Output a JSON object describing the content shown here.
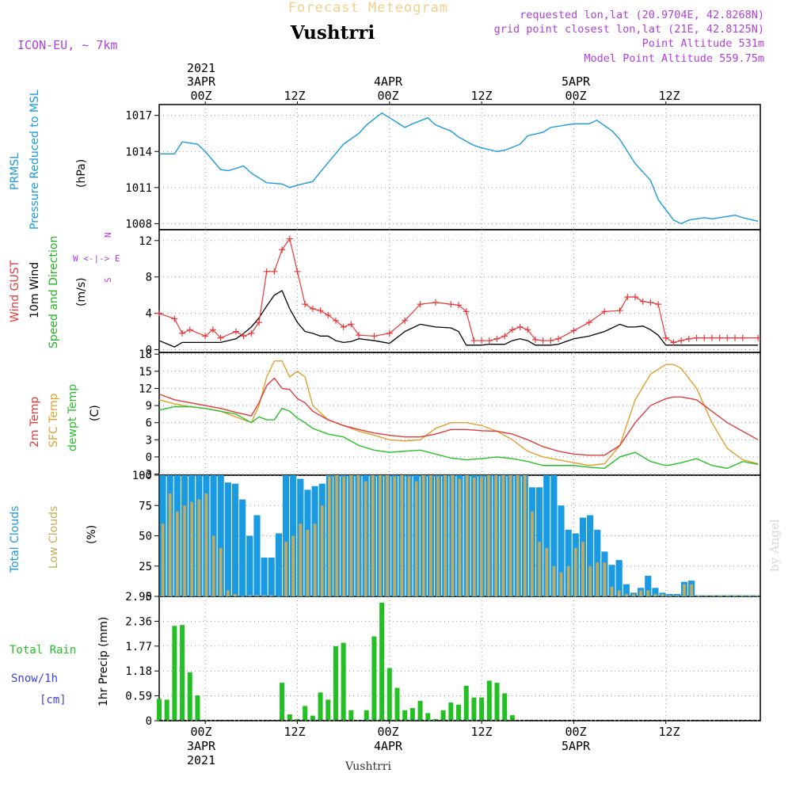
{
  "header": {
    "forecast_title": "Forecast Meteogram",
    "location": "Vushtrri",
    "model": "ICON-EU, ~ 7km",
    "requested": "requested lon,lat (20.9704E, 42.8268N)",
    "gridpoint": "grid point closest lon,lat (21E, 42.8125N)",
    "point_alt": "Point Altitude 531m",
    "model_alt": "Model Point Altitude 559.75m",
    "bottom_label": "Vushtrri",
    "watermark": "by Angel"
  },
  "colors": {
    "pressure": "#1a9ae0",
    "gust": "#e8383a",
    "wind": "#000000",
    "dir": "#22b422",
    "temp": "#e03c3c",
    "sfc": "#e0a030",
    "dewpt": "#28c028",
    "total_clouds": "#1a9ae0",
    "low_clouds": "#c8aa5a",
    "rain": "#22c022",
    "snow": "#4040e0",
    "purple": "#b040d8",
    "forecast_title": "#f0d08a"
  },
  "top_axis": {
    "ticks": [
      {
        "label": "00Z",
        "date": "3APR",
        "year": "2021"
      },
      {
        "label": "12Z",
        "date": "",
        "year": ""
      },
      {
        "label": "00Z",
        "date": "4APR",
        "year": ""
      },
      {
        "label": "12Z",
        "date": "",
        "year": ""
      },
      {
        "label": "00Z",
        "date": "5APR",
        "year": ""
      },
      {
        "label": "12Z",
        "date": "",
        "year": ""
      }
    ]
  },
  "bottom_axis": {
    "ticks": [
      {
        "label": "00Z",
        "date": "3APR",
        "year": "2021"
      },
      {
        "label": "12Z",
        "date": "",
        "year": ""
      },
      {
        "label": "00Z",
        "date": "4APR",
        "year": ""
      },
      {
        "label": "12Z",
        "date": "",
        "year": ""
      },
      {
        "label": "00Z",
        "date": "5APR",
        "year": ""
      },
      {
        "label": "12Z",
        "date": "",
        "year": ""
      }
    ]
  },
  "panel_labels": {
    "pressure": {
      "l1": "PRMSL",
      "l2": "Pressure Reduced to MSL",
      "unit": "(hPa)"
    },
    "wind": {
      "l1": "Wind GUST",
      "l2": "10m Wind",
      "l3": "Speed and Direction",
      "unit": "(m/s)",
      "compass_ns": "N",
      "compass_s": "S",
      "compass_we": "W <-|-> E"
    },
    "temp": {
      "l1": "2m Temp",
      "l2": "SFC Temp",
      "l3": "dewpt Temp",
      "unit": "(C)"
    },
    "clouds": {
      "l1": "Total Clouds",
      "l2": "Low Clouds",
      "unit": "(%)"
    },
    "precip": {
      "l1": "Total  Rain",
      "l2": "Snow/1h",
      "l3": "[cm]",
      "unit": "1hr Precip (mm)"
    }
  },
  "chart_data": [
    {
      "type": "line",
      "panel": "pressure",
      "x_hours": [
        -6,
        -4,
        -3,
        -1,
        0,
        2,
        3,
        5,
        6,
        8,
        10,
        11,
        12,
        14,
        15,
        18,
        20,
        21,
        23,
        24,
        26,
        27,
        29,
        30,
        32,
        33,
        35,
        36,
        38,
        39,
        41,
        42,
        44,
        45,
        47,
        48,
        50,
        51,
        53,
        54,
        56,
        58,
        59,
        61,
        62,
        63,
        65,
        66,
        67,
        69,
        70,
        72
      ],
      "values": [
        1013.8,
        1013.8,
        1014.8,
        1014.6,
        1014.0,
        1012.5,
        1012.4,
        1012.8,
        1012.2,
        1011.4,
        1011.3,
        1011.0,
        1011.2,
        1011.5,
        1012.3,
        1014.6,
        1015.5,
        1016.2,
        1017.2,
        1016.8,
        1016.0,
        1016.3,
        1016.8,
        1016.2,
        1015.7,
        1015.2,
        1014.5,
        1014.3,
        1014.0,
        1014.1,
        1014.6,
        1015.3,
        1015.6,
        1016.0,
        1016.2,
        1016.3,
        1016.3,
        1016.6,
        1015.7,
        1015.0,
        1013.0,
        1011.6,
        1010.0,
        1008.3,
        1008.0,
        1008.3,
        1008.5,
        1008.4,
        1008.5,
        1008.7,
        1008.5,
        1008.2
      ],
      "ylim": [
        1007.5,
        1017.9
      ],
      "yticks": [
        1008,
        1011,
        1014,
        1017
      ]
    },
    {
      "type": "line",
      "panel": "wind",
      "x_hours": [
        -6,
        -4,
        -3,
        -2,
        0,
        1,
        2,
        4,
        5,
        6,
        7,
        8,
        9,
        10,
        11,
        12,
        13,
        14,
        15,
        16,
        17,
        18,
        19,
        20,
        22,
        24,
        26,
        28,
        30,
        32,
        33,
        34,
        35,
        36,
        37,
        38,
        39,
        40,
        41,
        42,
        43,
        44,
        45,
        46,
        48,
        50,
        52,
        54,
        55,
        56,
        57,
        58,
        59,
        60,
        61,
        62,
        63,
        64,
        65,
        66,
        67,
        68,
        69,
        70,
        72
      ],
      "gust": [
        4.0,
        3.4,
        1.8,
        2.2,
        1.5,
        2.2,
        1.3,
        2.0,
        1.5,
        1.8,
        3.0,
        8.6,
        8.6,
        11.0,
        12.2,
        8.6,
        5.0,
        4.5,
        4.3,
        3.8,
        3.2,
        2.5,
        2.8,
        1.6,
        1.5,
        1.8,
        3.2,
        5.0,
        5.2,
        5.0,
        4.9,
        4.2,
        1.0,
        1.0,
        1.0,
        1.2,
        1.5,
        2.2,
        2.5,
        2.2,
        1.1,
        1.0,
        1.0,
        1.2,
        2.1,
        3.0,
        4.2,
        4.3,
        5.8,
        5.8,
        5.3,
        5.2,
        5.0,
        1.3,
        0.8,
        1.0,
        1.2,
        1.3,
        1.3,
        1.3,
        1.3,
        1.3,
        1.3,
        1.3,
        1.3
      ],
      "wind": [
        1.0,
        0.3,
        0.8,
        0.8,
        0.8,
        0.8,
        0.8,
        1.2,
        1.8,
        2.5,
        3.5,
        4.8,
        6.0,
        6.5,
        4.5,
        3.0,
        2.0,
        1.8,
        1.5,
        1.5,
        1.0,
        0.8,
        0.9,
        1.2,
        1.0,
        0.7,
        2.0,
        2.8,
        2.5,
        2.4,
        2.0,
        0.5,
        0.5,
        0.5,
        0.6,
        0.6,
        0.6,
        1.0,
        1.2,
        1.0,
        0.5,
        0.5,
        0.5,
        0.6,
        1.2,
        1.5,
        2.0,
        2.8,
        2.5,
        2.5,
        2.6,
        2.2,
        1.6,
        0.5,
        0.5,
        0.5,
        0.5,
        0.5,
        0.5,
        0.5,
        0.5,
        0.5,
        0.5,
        0.5,
        0.5
      ],
      "ylim": [
        -0.3,
        13.2
      ],
      "yticks": [
        0,
        4,
        8,
        12
      ]
    },
    {
      "type": "line",
      "panel": "temperature",
      "x_hours": [
        -6,
        -4,
        -2,
        0,
        2,
        4,
        6,
        7,
        8,
        9,
        10,
        11,
        12,
        13,
        14,
        16,
        18,
        20,
        22,
        24,
        26,
        28,
        30,
        32,
        34,
        36,
        38,
        40,
        42,
        44,
        46,
        48,
        50,
        52,
        54,
        56,
        58,
        60,
        61,
        62,
        64,
        66,
        68,
        70,
        72
      ],
      "temp2m": [
        11.0,
        10.0,
        9.5,
        9.0,
        8.5,
        7.8,
        7.2,
        9.5,
        12.5,
        13.8,
        12.0,
        11.8,
        10.2,
        9.5,
        8.0,
        6.5,
        5.5,
        4.8,
        4.2,
        3.8,
        3.5,
        3.5,
        4.0,
        4.8,
        4.8,
        4.6,
        4.5,
        4.0,
        3.0,
        1.8,
        1.0,
        0.5,
        0.3,
        0.3,
        2.0,
        6.0,
        9.0,
        10.2,
        10.5,
        10.5,
        10.0,
        8.0,
        6.0,
        4.5,
        3.0
      ],
      "sfc": [
        10.0,
        9.3,
        8.8,
        8.5,
        8.0,
        7.0,
        6.0,
        9.0,
        14.0,
        16.8,
        16.8,
        14.0,
        15.0,
        14.0,
        9.0,
        6.5,
        5.5,
        4.5,
        3.8,
        3.0,
        2.8,
        3.0,
        5.0,
        6.0,
        6.0,
        5.5,
        4.5,
        3.0,
        1.0,
        0.0,
        -0.5,
        -1.0,
        -1.5,
        -1.2,
        2.0,
        10.0,
        14.5,
        16.2,
        16.2,
        15.5,
        12.0,
        6.0,
        1.5,
        -0.5,
        -1.2
      ],
      "dewpt": [
        8.2,
        8.8,
        8.8,
        8.5,
        8.0,
        7.5,
        6.0,
        7.0,
        6.5,
        6.5,
        8.5,
        8.0,
        6.8,
        6.0,
        5.0,
        4.0,
        3.5,
        2.0,
        1.2,
        0.8,
        1.0,
        1.2,
        0.5,
        -0.2,
        -0.5,
        -0.3,
        0.0,
        -0.3,
        -0.8,
        -1.5,
        -1.5,
        -1.5,
        -1.8,
        -2.0,
        0.0,
        0.8,
        -0.8,
        -1.5,
        -1.3,
        -1.0,
        -0.3,
        -1.5,
        -2.0,
        -0.8,
        -1.3
      ],
      "ylim": [
        -3.2,
        18.3
      ],
      "yticks": [
        -3,
        0,
        3,
        6,
        9,
        12,
        15,
        18
      ]
    },
    {
      "type": "bar",
      "panel": "clouds",
      "ylim": [
        0,
        100
      ],
      "yticks": [
        0,
        25,
        50,
        75,
        100
      ],
      "total": [
        100,
        100,
        100,
        100,
        100,
        100,
        100,
        100,
        100,
        94,
        93,
        80,
        50,
        67,
        32,
        32,
        52,
        100,
        100,
        97,
        88,
        91,
        93,
        100,
        100,
        100,
        100,
        100,
        100,
        100,
        100,
        100,
        100,
        100,
        100,
        100,
        100,
        100,
        100,
        100,
        100,
        100,
        100,
        100,
        100,
        100,
        100,
        100,
        100,
        100,
        100,
        90,
        90,
        100,
        100,
        75,
        55,
        52,
        65,
        67,
        55,
        37,
        26,
        30,
        10,
        3,
        7,
        17,
        7,
        3,
        2,
        2,
        12,
        13,
        1,
        1,
        1,
        1,
        1,
        1,
        1,
        1,
        1
      ],
      "low": [
        60,
        85,
        70,
        75,
        78,
        80,
        85,
        50,
        40,
        5,
        2,
        0,
        1,
        1,
        1,
        1,
        0,
        45,
        50,
        60,
        55,
        60,
        75,
        99,
        100,
        99,
        100,
        100,
        95,
        100,
        100,
        100,
        99,
        100,
        99,
        95,
        100,
        100,
        99,
        100,
        100,
        97,
        100,
        98,
        99,
        100,
        100,
        100,
        100,
        100,
        100,
        70,
        45,
        40,
        25,
        20,
        25,
        40,
        45,
        25,
        28,
        28,
        8,
        5,
        2,
        2,
        5,
        5,
        2,
        2,
        1,
        1,
        10,
        10,
        1,
        1,
        1,
        1,
        1,
        1,
        1,
        1,
        1
      ]
    },
    {
      "type": "bar",
      "panel": "precipitation",
      "ylim": [
        0,
        2.95
      ],
      "yticks": [
        0,
        0.59,
        1.18,
        1.77,
        2.36,
        2.95
      ],
      "x_hours": [
        -6,
        -5,
        -4,
        -3,
        -2,
        -1,
        0,
        1,
        2,
        3,
        4,
        5,
        6,
        7,
        8,
        9,
        10,
        11,
        12,
        13,
        14,
        15,
        16,
        17,
        18,
        19,
        20,
        21,
        22,
        23,
        24,
        25,
        26,
        27,
        28,
        29,
        30,
        31,
        32,
        33,
        34,
        35,
        36,
        37,
        38,
        39,
        40,
        41,
        42,
        43,
        44,
        45,
        46,
        47,
        48,
        49,
        50,
        51,
        52,
        53,
        54,
        55,
        56,
        57,
        58,
        59,
        60,
        61,
        62,
        63,
        64,
        65,
        66,
        67,
        68,
        69,
        70,
        71,
        72
      ],
      "rain": [
        0.52,
        0.5,
        2.25,
        2.27,
        1.15,
        0.6,
        0.02,
        0,
        0,
        0,
        0,
        0,
        0,
        0,
        0,
        0,
        0.9,
        0.15,
        0.04,
        0.35,
        0.12,
        0.67,
        0.5,
        1.77,
        1.85,
        0.25,
        0,
        0.25,
        2.0,
        2.8,
        1.25,
        0.78,
        0.25,
        0.3,
        0.47,
        0.18,
        0.04,
        0.25,
        0.43,
        0.38,
        0.83,
        0.55,
        0.55,
        0.95,
        0.9,
        0.65,
        0.13,
        0,
        0,
        0,
        0,
        0,
        0,
        0,
        0,
        0,
        0,
        0,
        0,
        0,
        0,
        0,
        0,
        0,
        0,
        0,
        0,
        0,
        0,
        0,
        0,
        0,
        0,
        0,
        0,
        0,
        0,
        0,
        0
      ]
    }
  ]
}
